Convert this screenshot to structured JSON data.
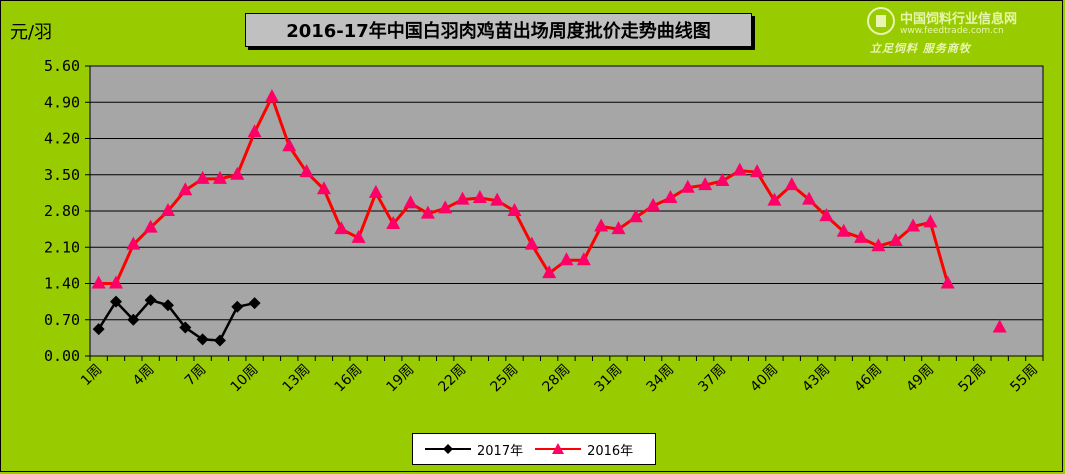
{
  "title": "2016-17年中国白羽肉鸡苗出场周度批价走势曲线图",
  "unit": "元/羽",
  "watermark": {
    "name": "中国饲料行业信息网",
    "url": "www.feedtrade.com.cn",
    "slogan": "立足饲料  服务商牧"
  },
  "colors": {
    "background": "#99cc00",
    "plot_area": "#a6a6a6",
    "series_2017": "#000000",
    "series_2016": "#ff0000"
  },
  "chart_data": {
    "type": "line",
    "title": "2016-17年中国白羽肉鸡苗出场周度批价走势曲线图",
    "ylabel": "元/羽",
    "xlabel": "",
    "ylim": [
      0,
      5.6
    ],
    "yticks": [
      "0.00",
      "0.70",
      "1.40",
      "2.10",
      "2.80",
      "3.50",
      "4.20",
      "4.90",
      "5.60"
    ],
    "xticks": [
      "1周",
      "4周",
      "7周",
      "10周",
      "13周",
      "16周",
      "19周",
      "22周",
      "25周",
      "28周",
      "31周",
      "34周",
      "37周",
      "40周",
      "43周",
      "46周",
      "49周",
      "52周",
      "55周"
    ],
    "grid": "horizontal",
    "legend_position": "bottom",
    "series": [
      {
        "name": "2017年",
        "marker": "diamond",
        "points": [
          [
            1,
            0.52
          ],
          [
            2,
            1.05
          ],
          [
            3,
            0.7
          ],
          [
            4,
            1.08
          ],
          [
            5,
            0.98
          ],
          [
            6,
            0.55
          ],
          [
            7,
            0.32
          ],
          [
            8,
            0.3
          ],
          [
            9,
            0.95
          ],
          [
            10,
            1.02
          ]
        ]
      },
      {
        "name": "2016年",
        "marker": "triangle",
        "points": [
          [
            1,
            1.4
          ],
          [
            2,
            1.4
          ],
          [
            3,
            2.15
          ],
          [
            4,
            2.48
          ],
          [
            5,
            2.8
          ],
          [
            6,
            3.2
          ],
          [
            7,
            3.42
          ],
          [
            8,
            3.42
          ],
          [
            9,
            3.5
          ],
          [
            10,
            4.32
          ],
          [
            11,
            5.0
          ],
          [
            12,
            4.05
          ],
          [
            13,
            3.55
          ],
          [
            14,
            3.22
          ],
          [
            15,
            2.45
          ],
          [
            16,
            2.28
          ],
          [
            17,
            3.15
          ],
          [
            18,
            2.55
          ],
          [
            19,
            2.95
          ],
          [
            20,
            2.75
          ],
          [
            21,
            2.85
          ],
          [
            22,
            3.02
          ],
          [
            23,
            3.05
          ],
          [
            24,
            3.0
          ],
          [
            25,
            2.8
          ],
          [
            26,
            2.15
          ],
          [
            27,
            1.6
          ],
          [
            28,
            1.85
          ],
          [
            29,
            1.85
          ],
          [
            30,
            2.5
          ],
          [
            31,
            2.45
          ],
          [
            32,
            2.68
          ],
          [
            33,
            2.9
          ],
          [
            34,
            3.05
          ],
          [
            35,
            3.25
          ],
          [
            36,
            3.3
          ],
          [
            37,
            3.38
          ],
          [
            38,
            3.58
          ],
          [
            39,
            3.55
          ],
          [
            40,
            3.0
          ],
          [
            41,
            3.3
          ],
          [
            42,
            3.02
          ],
          [
            43,
            2.7
          ],
          [
            44,
            2.4
          ],
          [
            45,
            2.28
          ],
          [
            46,
            2.12
          ],
          [
            47,
            2.22
          ],
          [
            48,
            2.5
          ],
          [
            49,
            2.58
          ],
          [
            50,
            1.4
          ],
          [
            null,
            null
          ],
          [
            null,
            null
          ],
          [
            53,
            0.55
          ]
        ]
      }
    ]
  }
}
